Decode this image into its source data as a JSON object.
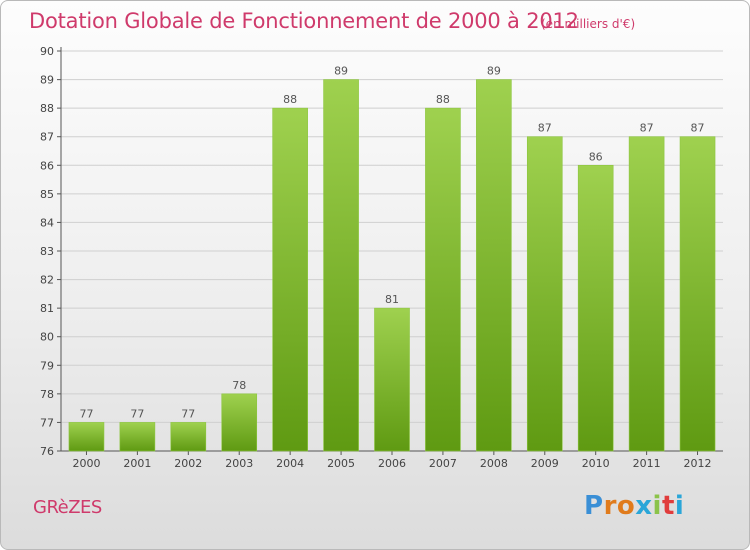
{
  "title": "Dotation Globale de Fonctionnement de 2000 à 2012",
  "unit": "(en milliers d'€)",
  "commune": "GRèZES",
  "logo": {
    "letters": [
      "P",
      "r",
      "o",
      "x",
      "i",
      "t",
      "i"
    ],
    "colors": [
      "#3a8fd6",
      "#e07b1c",
      "#e07b1c",
      "#2aa6d8",
      "#8bc34a",
      "#e03c3c",
      "#2aa6d8"
    ]
  },
  "colors": {
    "bar_top": "#9fd14f",
    "bar_bottom": "#5f9a12",
    "accent": "#cf3a6b"
  },
  "chart_data": {
    "type": "bar",
    "categories": [
      "2000",
      "2001",
      "2002",
      "2003",
      "2004",
      "2005",
      "2006",
      "2007",
      "2008",
      "2009",
      "2010",
      "2011",
      "2012"
    ],
    "values": [
      77,
      77,
      77,
      78,
      88,
      89,
      81,
      88,
      89,
      87,
      86,
      87,
      87
    ],
    "data_labels": [
      "77",
      "77",
      "77",
      "78",
      "88",
      "89",
      "81",
      "88",
      "89",
      "87",
      "86",
      "87",
      "87"
    ],
    "ylim": [
      76,
      90
    ],
    "yticks": [
      "76",
      "77",
      "78",
      "79",
      "80",
      "81",
      "82",
      "83",
      "84",
      "85",
      "86",
      "87",
      "88",
      "89",
      "90"
    ],
    "grid": true
  }
}
